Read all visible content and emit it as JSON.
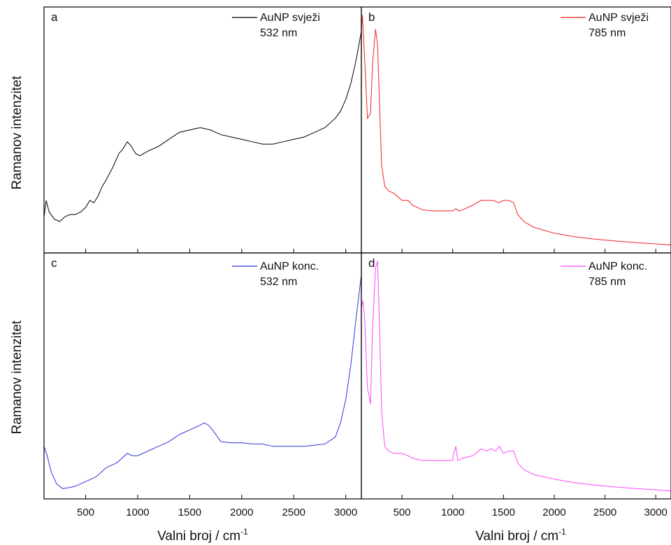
{
  "figure": {
    "y_axis_label": "Ramanov intenzitet",
    "x_axis_label_main": "Valni broj / cm",
    "x_axis_label_sup": "-1"
  },
  "chart_data": [
    {
      "type": "line",
      "panel": "a",
      "legend": [
        "AuNP svježi",
        "532 nm"
      ],
      "color": "#000000",
      "xlabel": "Valni broj / cm-1",
      "ylabel": "Ramanov intenzitet",
      "xlim": [
        100,
        3150
      ],
      "ylim": [
        0,
        1
      ],
      "xticks": [
        500,
        1000,
        1500,
        2000,
        2500,
        3000
      ],
      "show_tick_labels": false,
      "series": [
        {
          "x": [
            100,
            120,
            150,
            200,
            250,
            300,
            350,
            400,
            450,
            500,
            540,
            580,
            620,
            660,
            700,
            760,
            820,
            860,
            900,
            940,
            980,
            1020,
            1100,
            1200,
            1300,
            1400,
            1500,
            1600,
            1700,
            1800,
            1900,
            2000,
            2100,
            2200,
            2300,
            2400,
            2500,
            2600,
            2700,
            2800,
            2900,
            2950,
            3000,
            3050,
            3100,
            3150
          ],
          "y": [
            0.13,
            0.2,
            0.15,
            0.12,
            0.11,
            0.13,
            0.14,
            0.14,
            0.15,
            0.17,
            0.2,
            0.19,
            0.22,
            0.26,
            0.29,
            0.34,
            0.4,
            0.42,
            0.45,
            0.43,
            0.4,
            0.39,
            0.41,
            0.43,
            0.46,
            0.49,
            0.5,
            0.51,
            0.5,
            0.48,
            0.47,
            0.46,
            0.45,
            0.44,
            0.44,
            0.45,
            0.46,
            0.47,
            0.49,
            0.51,
            0.55,
            0.58,
            0.63,
            0.7,
            0.8,
            0.92
          ]
        }
      ]
    },
    {
      "type": "line",
      "panel": "b",
      "legend": [
        "AuNP svježi",
        "785 nm"
      ],
      "color": "#ee2222",
      "xlabel": "Valni broj / cm-1",
      "ylabel": "Ramanov intenzitet",
      "xlim": [
        100,
        3150
      ],
      "ylim": [
        0,
        1
      ],
      "xticks": [
        500,
        1000,
        1500,
        2000,
        2500,
        3000
      ],
      "show_tick_labels": false,
      "series": [
        {
          "x": [
            100,
            110,
            130,
            160,
            190,
            210,
            240,
            260,
            280,
            300,
            330,
            370,
            420,
            500,
            560,
            600,
            700,
            800,
            900,
            1000,
            1030,
            1060,
            1100,
            1200,
            1280,
            1330,
            1400,
            1450,
            1500,
            1550,
            1600,
            1640,
            1700,
            1800,
            2000,
            2200,
            2400,
            2600,
            2800,
            3000,
            3150
          ],
          "y": [
            0.92,
            0.99,
            0.82,
            0.55,
            0.57,
            0.78,
            0.93,
            0.86,
            0.6,
            0.35,
            0.26,
            0.24,
            0.23,
            0.2,
            0.2,
            0.18,
            0.16,
            0.155,
            0.155,
            0.155,
            0.165,
            0.155,
            0.16,
            0.18,
            0.2,
            0.2,
            0.2,
            0.19,
            0.2,
            0.2,
            0.19,
            0.14,
            0.11,
            0.085,
            0.06,
            0.045,
            0.035,
            0.027,
            0.02,
            0.015,
            0.01
          ]
        }
      ]
    },
    {
      "type": "line",
      "panel": "c",
      "legend": [
        "AuNP konc.",
        "532 nm"
      ],
      "color": "#3333dd",
      "xlabel": "Valni broj / cm-1",
      "ylabel": "Ramanov intenzitet",
      "xlim": [
        100,
        3150
      ],
      "ylim": [
        0,
        1
      ],
      "xticks": [
        500,
        1000,
        1500,
        2000,
        2500,
        3000
      ],
      "show_tick_labels": true,
      "series": [
        {
          "x": [
            100,
            130,
            170,
            220,
            280,
            350,
            400,
            450,
            500,
            550,
            600,
            650,
            700,
            750,
            800,
            850,
            900,
            950,
            1000,
            1100,
            1200,
            1300,
            1400,
            1500,
            1550,
            1600,
            1640,
            1680,
            1720,
            1800,
            1900,
            2000,
            2100,
            2200,
            2300,
            2400,
            2500,
            2600,
            2700,
            2800,
            2900,
            2950,
            3000,
            3050,
            3100,
            3150
          ],
          "y": [
            0.2,
            0.16,
            0.09,
            0.04,
            0.02,
            0.025,
            0.03,
            0.04,
            0.05,
            0.06,
            0.07,
            0.09,
            0.11,
            0.12,
            0.13,
            0.15,
            0.17,
            0.16,
            0.16,
            0.18,
            0.2,
            0.22,
            0.25,
            0.27,
            0.28,
            0.29,
            0.3,
            0.29,
            0.27,
            0.22,
            0.215,
            0.215,
            0.21,
            0.21,
            0.2,
            0.2,
            0.2,
            0.2,
            0.205,
            0.21,
            0.24,
            0.3,
            0.4,
            0.55,
            0.75,
            0.93
          ]
        }
      ]
    },
    {
      "type": "line",
      "panel": "d",
      "legend": [
        "AuNP konc.",
        "785 nm"
      ],
      "color": "#ff44ff",
      "xlabel": "Valni broj / cm-1",
      "ylabel": "Ramanov intenzitet",
      "xlim": [
        100,
        3150
      ],
      "ylim": [
        0,
        1
      ],
      "xticks": [
        500,
        1000,
        1500,
        2000,
        2500,
        3000
      ],
      "show_tick_labels": true,
      "series": [
        {
          "x": [
            100,
            115,
            130,
            160,
            190,
            210,
            240,
            260,
            280,
            300,
            330,
            370,
            420,
            500,
            560,
            600,
            700,
            800,
            900,
            1000,
            1010,
            1030,
            1050,
            1100,
            1200,
            1280,
            1330,
            1380,
            1420,
            1460,
            1500,
            1550,
            1600,
            1640,
            1700,
            1800,
            2000,
            2200,
            2400,
            2600,
            2800,
            3000,
            3150
          ],
          "y": [
            0.79,
            0.82,
            0.76,
            0.45,
            0.38,
            0.7,
            0.96,
            0.99,
            0.7,
            0.35,
            0.2,
            0.18,
            0.17,
            0.17,
            0.16,
            0.15,
            0.14,
            0.14,
            0.14,
            0.14,
            0.17,
            0.2,
            0.14,
            0.15,
            0.16,
            0.19,
            0.18,
            0.19,
            0.18,
            0.2,
            0.17,
            0.18,
            0.18,
            0.13,
            0.1,
            0.08,
            0.06,
            0.045,
            0.035,
            0.027,
            0.02,
            0.015,
            0.01
          ]
        }
      ]
    }
  ]
}
